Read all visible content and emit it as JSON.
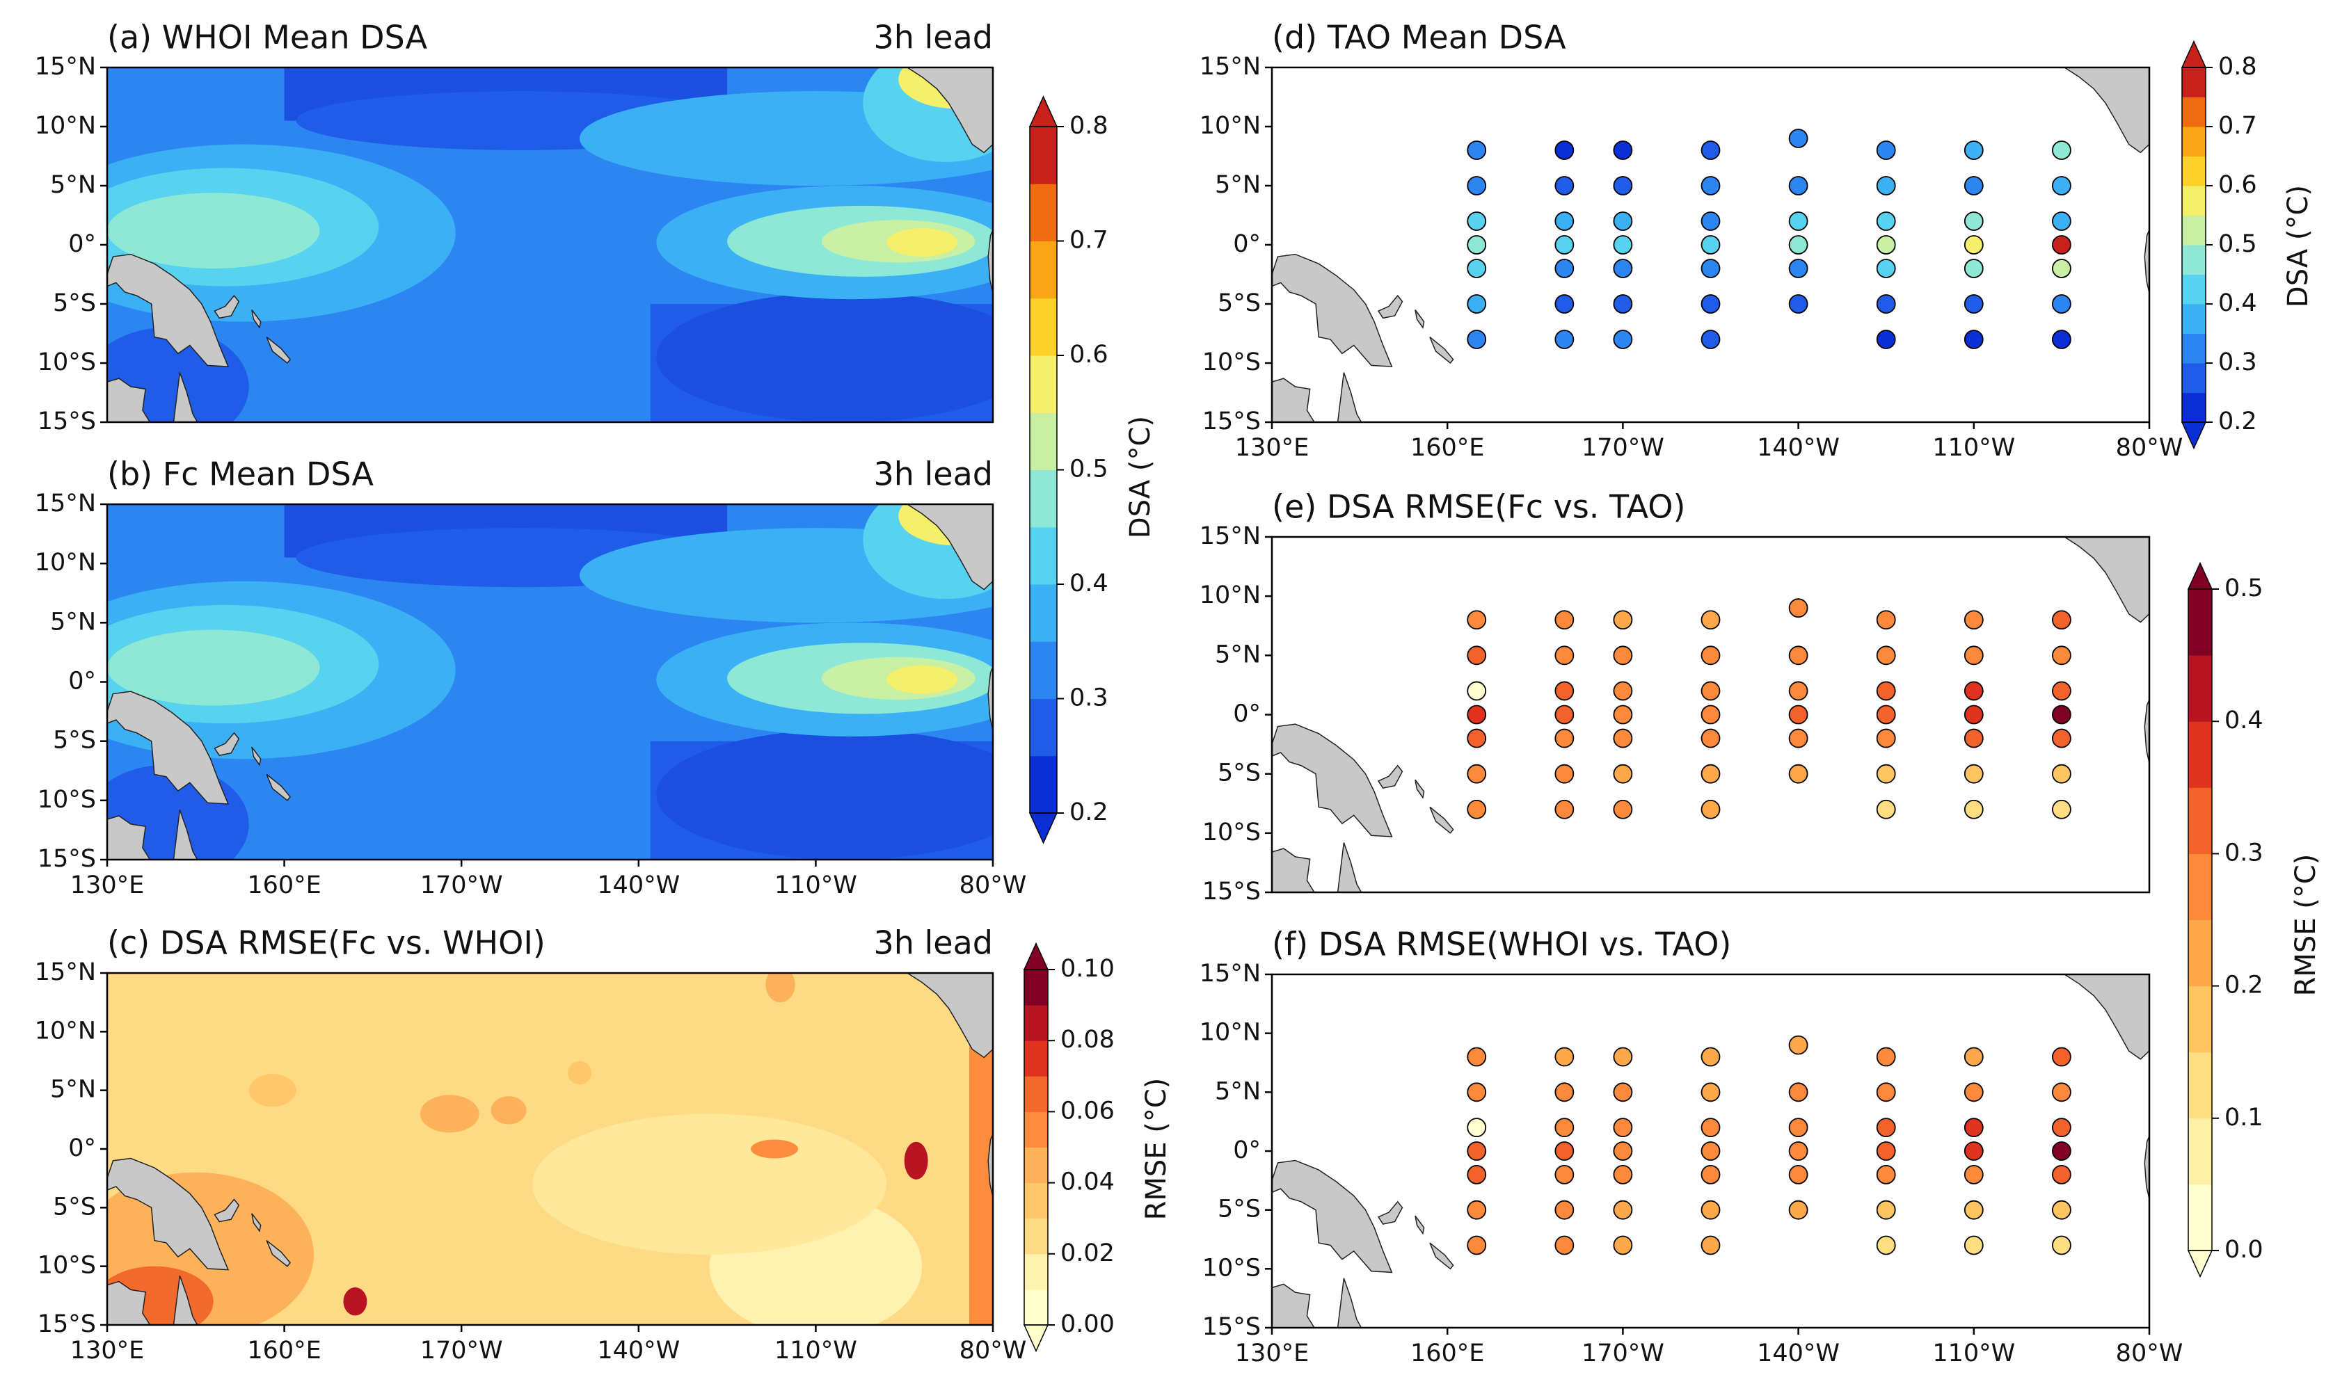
{
  "chart_data": [
    {
      "type": "contour",
      "title": "(a) WHOI Mean DSA",
      "annotation": "3h lead",
      "xlim": [
        130,
        280
      ],
      "ylim": [
        -15,
        15
      ],
      "yticks": [
        {
          "value": 15,
          "label": "15°N"
        },
        {
          "value": 10,
          "label": "10°N"
        },
        {
          "value": 5,
          "label": "5°N"
        },
        {
          "value": 0,
          "label": "0°"
        },
        {
          "value": -5,
          "label": "5°S"
        },
        {
          "value": -10,
          "label": "10°S"
        },
        {
          "value": -15,
          "label": "15°S"
        }
      ],
      "colorbar": {
        "label": "DSA (°C)",
        "lim": [
          0.2,
          0.8
        ],
        "ticks": [
          0.2,
          0.3,
          0.4,
          0.5,
          0.6,
          0.7,
          0.8
        ],
        "extend": "both",
        "colors": [
          "#0a2fd6",
          "#1f5ce8",
          "#2c86f2",
          "#3cb0f5",
          "#57d2ef",
          "#8ee8d6",
          "#c8f0a4",
          "#f5ef6a",
          "#fcd22a",
          "#f9a516",
          "#ef6c10",
          "#c8201b"
        ]
      }
    },
    {
      "type": "contour",
      "title": "(b) Fc Mean DSA",
      "annotation": "3h lead",
      "xlim": [
        130,
        280
      ],
      "ylim": [
        -15,
        15
      ],
      "xticks": [
        {
          "value": 130,
          "label": "130°E"
        },
        {
          "value": 160,
          "label": "160°E"
        },
        {
          "value": 190,
          "label": "170°W"
        },
        {
          "value": 220,
          "label": "140°W"
        },
        {
          "value": 250,
          "label": "110°W"
        },
        {
          "value": 280,
          "label": "80°W"
        }
      ],
      "yticks": [
        {
          "value": 15,
          "label": "15°N"
        },
        {
          "value": 10,
          "label": "10°N"
        },
        {
          "value": 5,
          "label": "5°N"
        },
        {
          "value": 0,
          "label": "0°"
        },
        {
          "value": -5,
          "label": "5°S"
        },
        {
          "value": -10,
          "label": "10°S"
        },
        {
          "value": -15,
          "label": "15°S"
        }
      ]
    },
    {
      "type": "contour",
      "title": "(c) DSA RMSE(Fc vs. WHOI)",
      "annotation": "3h lead",
      "xlim": [
        130,
        280
      ],
      "ylim": [
        -15,
        15
      ],
      "xticks": [
        {
          "value": 130,
          "label": "130°E"
        },
        {
          "value": 160,
          "label": "160°E"
        },
        {
          "value": 190,
          "label": "170°W"
        },
        {
          "value": 220,
          "label": "140°W"
        },
        {
          "value": 250,
          "label": "110°W"
        },
        {
          "value": 280,
          "label": "80°W"
        }
      ],
      "yticks": [
        {
          "value": 15,
          "label": "15°N"
        },
        {
          "value": 10,
          "label": "10°N"
        },
        {
          "value": 5,
          "label": "5°N"
        },
        {
          "value": 0,
          "label": "0°"
        },
        {
          "value": -5,
          "label": "5°S"
        },
        {
          "value": -10,
          "label": "10°S"
        },
        {
          "value": -15,
          "label": "15°S"
        }
      ],
      "colorbar": {
        "label": "RMSE (°C)",
        "lim": [
          0,
          0.1
        ],
        "extend": "both",
        "ticks": [
          {
            "value": 0,
            "label": "0.00"
          },
          {
            "value": 0.02,
            "label": "0.02"
          },
          {
            "value": 0.04,
            "label": "0.04"
          },
          {
            "value": 0.06,
            "label": "0.06"
          },
          {
            "value": 0.08,
            "label": "0.08"
          },
          {
            "value": 0.1,
            "label": "0.10"
          }
        ],
        "colors": [
          "#ffffcc",
          "#fff2b0",
          "#feda85",
          "#fec868",
          "#fdb25a",
          "#fd8d3c",
          "#f46a2c",
          "#e0321e",
          "#b81424",
          "#800026"
        ]
      }
    },
    {
      "type": "scatter",
      "title": "(d) TAO Mean DSA",
      "xlim": [
        130,
        280
      ],
      "ylim": [
        -15,
        15
      ],
      "xticks": [
        {
          "value": 130,
          "label": "130°E"
        },
        {
          "value": 160,
          "label": "160°E"
        },
        {
          "value": 190,
          "label": "170°W"
        },
        {
          "value": 220,
          "label": "140°W"
        },
        {
          "value": 250,
          "label": "110°W"
        },
        {
          "value": 280,
          "label": "80°W"
        }
      ],
      "yticks": [
        {
          "value": 15,
          "label": "15°N"
        },
        {
          "value": 10,
          "label": "10°N"
        },
        {
          "value": 5,
          "label": "5°N"
        },
        {
          "value": 0,
          "label": "0°"
        },
        {
          "value": -5,
          "label": "5°S"
        },
        {
          "value": -10,
          "label": "10°S"
        },
        {
          "value": -15,
          "label": "15°S"
        }
      ],
      "x": [
        165,
        165,
        165,
        165,
        165,
        165,
        165,
        180,
        180,
        180,
        180,
        180,
        180,
        180,
        190,
        190,
        190,
        190,
        190,
        190,
        190,
        205,
        205,
        205,
        205,
        205,
        205,
        205,
        220,
        220,
        220,
        220,
        220,
        220,
        235,
        235,
        235,
        235,
        235,
        235,
        235,
        250,
        250,
        250,
        250,
        250,
        250,
        250,
        265,
        265,
        265,
        265,
        265,
        265,
        265
      ],
      "y": [
        8,
        5,
        2,
        0,
        -2,
        -5,
        -8,
        8,
        5,
        2,
        0,
        -2,
        -5,
        -8,
        8,
        5,
        2,
        0,
        -2,
        -5,
        -8,
        8,
        5,
        2,
        0,
        -2,
        -5,
        -8,
        9,
        5,
        2,
        0,
        -2,
        -5,
        8,
        5,
        2,
        0,
        -2,
        -5,
        -8,
        8,
        5,
        2,
        0,
        -2,
        -5,
        -8,
        8,
        5,
        2,
        0,
        -2,
        -5,
        -8
      ],
      "values": [
        0.32,
        0.35,
        0.42,
        0.45,
        0.4,
        0.38,
        0.35,
        0.25,
        0.3,
        0.38,
        0.42,
        0.35,
        0.3,
        0.35,
        0.25,
        0.28,
        0.38,
        0.4,
        0.35,
        0.3,
        0.33,
        0.27,
        0.33,
        0.35,
        0.42,
        0.35,
        0.3,
        0.3,
        0.33,
        0.35,
        0.4,
        0.45,
        0.35,
        0.28,
        0.35,
        0.36,
        0.42,
        0.55,
        0.42,
        0.3,
        0.25,
        0.36,
        0.35,
        0.45,
        0.6,
        0.45,
        0.3,
        0.25,
        0.45,
        0.37,
        0.38,
        0.75,
        0.55,
        0.32,
        0.25
      ],
      "colorbar": {
        "label": "DSA (°C)",
        "lim": [
          0.2,
          0.8
        ],
        "ticks": [
          0.2,
          0.3,
          0.4,
          0.5,
          0.6,
          0.7,
          0.8
        ],
        "extend": "both",
        "colors": [
          "#0a2fd6",
          "#1f5ce8",
          "#2c86f2",
          "#3cb0f5",
          "#57d2ef",
          "#8ee8d6",
          "#c8f0a4",
          "#f5ef6a",
          "#fcd22a",
          "#f9a516",
          "#ef6c10",
          "#c8201b"
        ]
      }
    },
    {
      "type": "scatter",
      "title": "(e) DSA RMSE(Fc vs. TAO)",
      "xlim": [
        130,
        280
      ],
      "ylim": [
        -15,
        15
      ],
      "yticks": [
        {
          "value": 15,
          "label": "15°N"
        },
        {
          "value": 10,
          "label": "10°N"
        },
        {
          "value": 5,
          "label": "5°N"
        },
        {
          "value": 0,
          "label": "0°"
        },
        {
          "value": -5,
          "label": "5°S"
        },
        {
          "value": -10,
          "label": "10°S"
        },
        {
          "value": -15,
          "label": "15°S"
        }
      ],
      "x": [
        165,
        165,
        165,
        165,
        165,
        165,
        165,
        180,
        180,
        180,
        180,
        180,
        180,
        180,
        190,
        190,
        190,
        190,
        190,
        190,
        190,
        205,
        205,
        205,
        205,
        205,
        205,
        205,
        220,
        220,
        220,
        220,
        220,
        220,
        235,
        235,
        235,
        235,
        235,
        235,
        235,
        250,
        250,
        250,
        250,
        250,
        250,
        250,
        265,
        265,
        265,
        265,
        265,
        265,
        265
      ],
      "y": [
        8,
        5,
        2,
        0,
        -2,
        -5,
        -8,
        8,
        5,
        2,
        0,
        -2,
        -5,
        -8,
        8,
        5,
        2,
        0,
        -2,
        -5,
        -8,
        8,
        5,
        2,
        0,
        -2,
        -5,
        -8,
        9,
        5,
        2,
        0,
        -2,
        -5,
        8,
        5,
        2,
        0,
        -2,
        -5,
        -8,
        8,
        5,
        2,
        0,
        -2,
        -5,
        -8,
        8,
        5,
        2,
        0,
        -2,
        -5,
        -8
      ],
      "values": [
        0.27,
        0.3,
        0,
        0.35,
        0.33,
        0.28,
        0.27,
        0.25,
        0.27,
        0.3,
        0.3,
        0.28,
        0.25,
        0.27,
        0.23,
        0.25,
        0.28,
        0.28,
        0.27,
        0.23,
        0.25,
        0.22,
        0.25,
        0.25,
        0.27,
        0.25,
        0.2,
        0.22,
        0.25,
        0.25,
        0.27,
        0.3,
        0.27,
        0.2,
        0.25,
        0.27,
        0.3,
        0.33,
        0.27,
        0.18,
        0.12,
        0.25,
        0.25,
        0.35,
        0.35,
        0.3,
        0.17,
        0.12,
        0.3,
        0.27,
        0.32,
        0.47,
        0.33,
        0.18,
        0.13
      ],
      "colorbar": {
        "label": "RMSE (°C)",
        "lim": [
          0,
          0.5
        ],
        "extend": "both",
        "ticks": [
          {
            "value": 0,
            "label": "0.0"
          },
          0.1,
          0.2,
          0.3,
          0.4,
          0.5
        ],
        "colors": [
          "#ffffd0",
          "#fff0a8",
          "#fede80",
          "#fec560",
          "#fda84a",
          "#fc8a3a",
          "#f4622c",
          "#e0321e",
          "#b81424",
          "#800026"
        ]
      }
    },
    {
      "type": "scatter",
      "title": "(f) DSA RMSE(WHOI vs. TAO)",
      "xlim": [
        130,
        280
      ],
      "ylim": [
        -15,
        15
      ],
      "xticks": [
        {
          "value": 130,
          "label": "130°E"
        },
        {
          "value": 160,
          "label": "160°E"
        },
        {
          "value": 190,
          "label": "170°W"
        },
        {
          "value": 220,
          "label": "140°W"
        },
        {
          "value": 250,
          "label": "110°W"
        },
        {
          "value": 280,
          "label": "80°W"
        }
      ],
      "yticks": [
        {
          "value": 15,
          "label": "15°N"
        },
        {
          "value": 10,
          "label": "10°N"
        },
        {
          "value": 5,
          "label": "5°N"
        },
        {
          "value": 0,
          "label": "0°"
        },
        {
          "value": -5,
          "label": "5°S"
        },
        {
          "value": -10,
          "label": "10°S"
        },
        {
          "value": -15,
          "label": "15°S"
        }
      ],
      "x": [
        165,
        165,
        165,
        165,
        165,
        165,
        165,
        180,
        180,
        180,
        180,
        180,
        180,
        180,
        190,
        190,
        190,
        190,
        190,
        190,
        190,
        205,
        205,
        205,
        205,
        205,
        205,
        205,
        220,
        220,
        220,
        220,
        220,
        220,
        235,
        235,
        235,
        235,
        235,
        235,
        235,
        250,
        250,
        250,
        250,
        250,
        250,
        250,
        265,
        265,
        265,
        265,
        265,
        265,
        265
      ],
      "y": [
        8,
        5,
        2,
        0,
        -2,
        -5,
        -8,
        8,
        5,
        2,
        0,
        -2,
        -5,
        -8,
        8,
        5,
        2,
        0,
        -2,
        -5,
        -8,
        8,
        5,
        2,
        0,
        -2,
        -5,
        -8,
        9,
        5,
        2,
        0,
        -2,
        -5,
        8,
        5,
        2,
        0,
        -2,
        -5,
        -8,
        8,
        5,
        2,
        0,
        -2,
        -5,
        -8,
        8,
        5,
        2,
        0,
        -2,
        -5,
        -8
      ],
      "values": [
        0.26,
        0.29,
        0,
        0.34,
        0.32,
        0.27,
        0.25,
        0.24,
        0.26,
        0.29,
        0.3,
        0.28,
        0.25,
        0.26,
        0.23,
        0.25,
        0.27,
        0.28,
        0.27,
        0.23,
        0.24,
        0.21,
        0.24,
        0.25,
        0.27,
        0.25,
        0.2,
        0.21,
        0.24,
        0.25,
        0.27,
        0.29,
        0.26,
        0.2,
        0.25,
        0.26,
        0.3,
        0.34,
        0.27,
        0.18,
        0.12,
        0.24,
        0.25,
        0.35,
        0.36,
        0.29,
        0.17,
        0.11,
        0.3,
        0.26,
        0.31,
        0.48,
        0.34,
        0.17,
        0.13
      ]
    }
  ]
}
